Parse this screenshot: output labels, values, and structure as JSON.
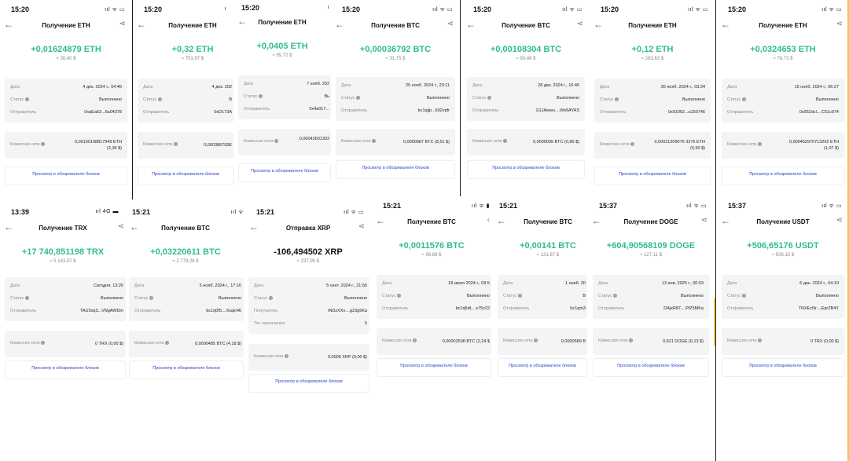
{
  "labels": {
    "date": "Дата",
    "status": "Статус",
    "sender": "Отправитель",
    "recipient": "Получатель",
    "tag": "Тег назначения",
    "fee": "Комиссия сети",
    "explorer": "Просмотр в обозревателе блоков"
  },
  "cards": [
    {
      "time": "15:20",
      "icons": "ııl ᯤ ▭",
      "title": "Получение ETH",
      "amount": "+0,01624879 ETH",
      "fiat": "≈ 38,40 $",
      "date": "4 дек. 2024 г., 04:46",
      "status": "Выполнено",
      "party": "0xaEa63...6a04378",
      "fee": "0,00100108817949 ETH",
      "fee2": "(2,36 $)"
    },
    {
      "time": "15:20",
      "icons": "ı",
      "title": "Получение ETH",
      "amount": "+0,32 ETH",
      "fiat": "≈ 753,97 $",
      "date": "4 дек. 202",
      "status": "В",
      "party": "0xD173A",
      "fee": "0,000386793E",
      "fee2": ""
    },
    {
      "time": "15:20",
      "icons": "ı",
      "title": "Получение ETH",
      "amount": "+0,0405 ETH",
      "fiat": "≈ 95,72 $",
      "date": "7 нояб. 202",
      "status": "Вь",
      "party": "0x4a017...",
      "fee": "0,00042601302",
      "fee2": ""
    },
    {
      "time": "15:20",
      "icons": "ııl ᯤ ▭",
      "title": "Получение BTC",
      "amount": "+0,00036792 BTC",
      "fiat": "≈ 31,75 $",
      "date": "25 нояб. 2024 г., 23:11",
      "status": "Выполнено",
      "party": "bc1qljp...692vpfr",
      "fee": "0,0000987 BTC (8,51 $)",
      "fee2": ""
    },
    {
      "time": "15:20",
      "icons": "ııl ᯤ ▭",
      "title": "Получение BTC",
      "amount": "+0,00108304 BTC",
      "fiat": "≈ 93,46 $",
      "date": "28 дек. 2024 г., 16:46",
      "status": "Выполнено",
      "party": "1GJAwwu....Wx6AYAS",
      "fee": "0,0000099 BTC (0,85 $)",
      "fee2": ""
    },
    {
      "time": "15:20",
      "icons": "ııl ᯤ ▭",
      "title": "Получение ETH",
      "amount": "+0,12 ETH",
      "fiat": "≈ 283,63 $",
      "date": "30 нояб. 2024 г., 03:34",
      "status": "Выполнено",
      "party": "0x91062...a150746",
      "fee": "0,00021209076 3276 ETH",
      "fee2": "(0,50 $)"
    },
    {
      "time": "15:20",
      "icons": "ııl ᯤ ▭",
      "title": "Получение ETH",
      "amount": "+0,0324653 ETH",
      "fiat": "≈ 76,73 $",
      "date": "15 нояб. 2024 г., 06:27",
      "status": "Выполнено",
      "party": "0x952dcl....C51c974",
      "fee": "0,000452970713202 ETH",
      "fee2": "(1,07 $)"
    },
    {
      "time": "13:39",
      "icons": "ııl 4G ▬",
      "title": "Получение TRX",
      "amount": "+17 740,851198 TRX",
      "fiat": "≈ 5 143,07 $",
      "date": "Сегодня, 13:26",
      "status": "Выполнено",
      "party": "TAU3xq3...VNgAWDm",
      "fee": "0 TRX (0,00 $)",
      "fee2": ""
    },
    {
      "time": "15:21",
      "icons": "ııl ᯤ",
      "title": "Получение BTC",
      "amount": "+0,03220611 BTC",
      "fiat": "≈ 2 779,26 $",
      "date": "5 нояб. 2024 г., 17:16",
      "status": "Выполнено",
      "party": "bc1q0f5....6sajc46",
      "fee": "0,0000485 BTC (4,18 $)",
      "fee2": ""
    },
    {
      "time": "15:21",
      "icons": "ııl ᯤ ▭",
      "title": "Отправка XRP",
      "amount": "-106,494502 XRP",
      "fiat": "≈ 237,95 $",
      "date": "5 сент. 2024 г., 21:55",
      "status": "Выполнено",
      "party": "rNDzXXv....g23g5Ka",
      "tagval": "5",
      "fee": "0,0005 XRP (0,00 $)",
      "fee2": ""
    },
    {
      "time": "15:21",
      "icons": "ııl ᯤ ▮",
      "title": "Получение BTC",
      "amount": "+0,0011576 BTC",
      "fiat": "≈ 99,89 $",
      "date": "18 июля 2024 г., 09:5",
      "status": "Выполнено",
      "party": "bc1q5dt....s75z22",
      "fee": "0,00002598 BTC (2,24 $",
      "fee2": ""
    },
    {
      "time": "15:21",
      "icons": "",
      "title": "Получение BTC",
      "amount": "+0,00141 BTC",
      "fiat": "≈ 121,67 $",
      "date": "1 нояб. 20",
      "status": "В",
      "party": "bc1qm3",
      "fee": "0,0000589 B",
      "fee2": ""
    },
    {
      "time": "15:37",
      "icons": "ııl ᯤ ▭",
      "title": "Получение DOGE",
      "amount": "+604,90568109 DOGE",
      "fiat": "≈ 127,11 $",
      "date": "13 янв. 2025 г., 00:53",
      "status": "Выполнено",
      "party": "DAjxR87....PfZ5MKa",
      "fee": "0,621 DOGE (0,13 $)",
      "fee2": ""
    },
    {
      "time": "15:37",
      "icons": "ııl ᯤ ▭",
      "title": "Получение USDT",
      "amount": "+506,65176 USDT",
      "fiat": "≈ 506,15 $",
      "date": "6 дек. 2024 г., 04:10",
      "status": "Выполнено",
      "party": "TNXEcNr....EqrZB4Y",
      "fee": "0 TRX (0,00 $)",
      "fee2": ""
    }
  ]
}
